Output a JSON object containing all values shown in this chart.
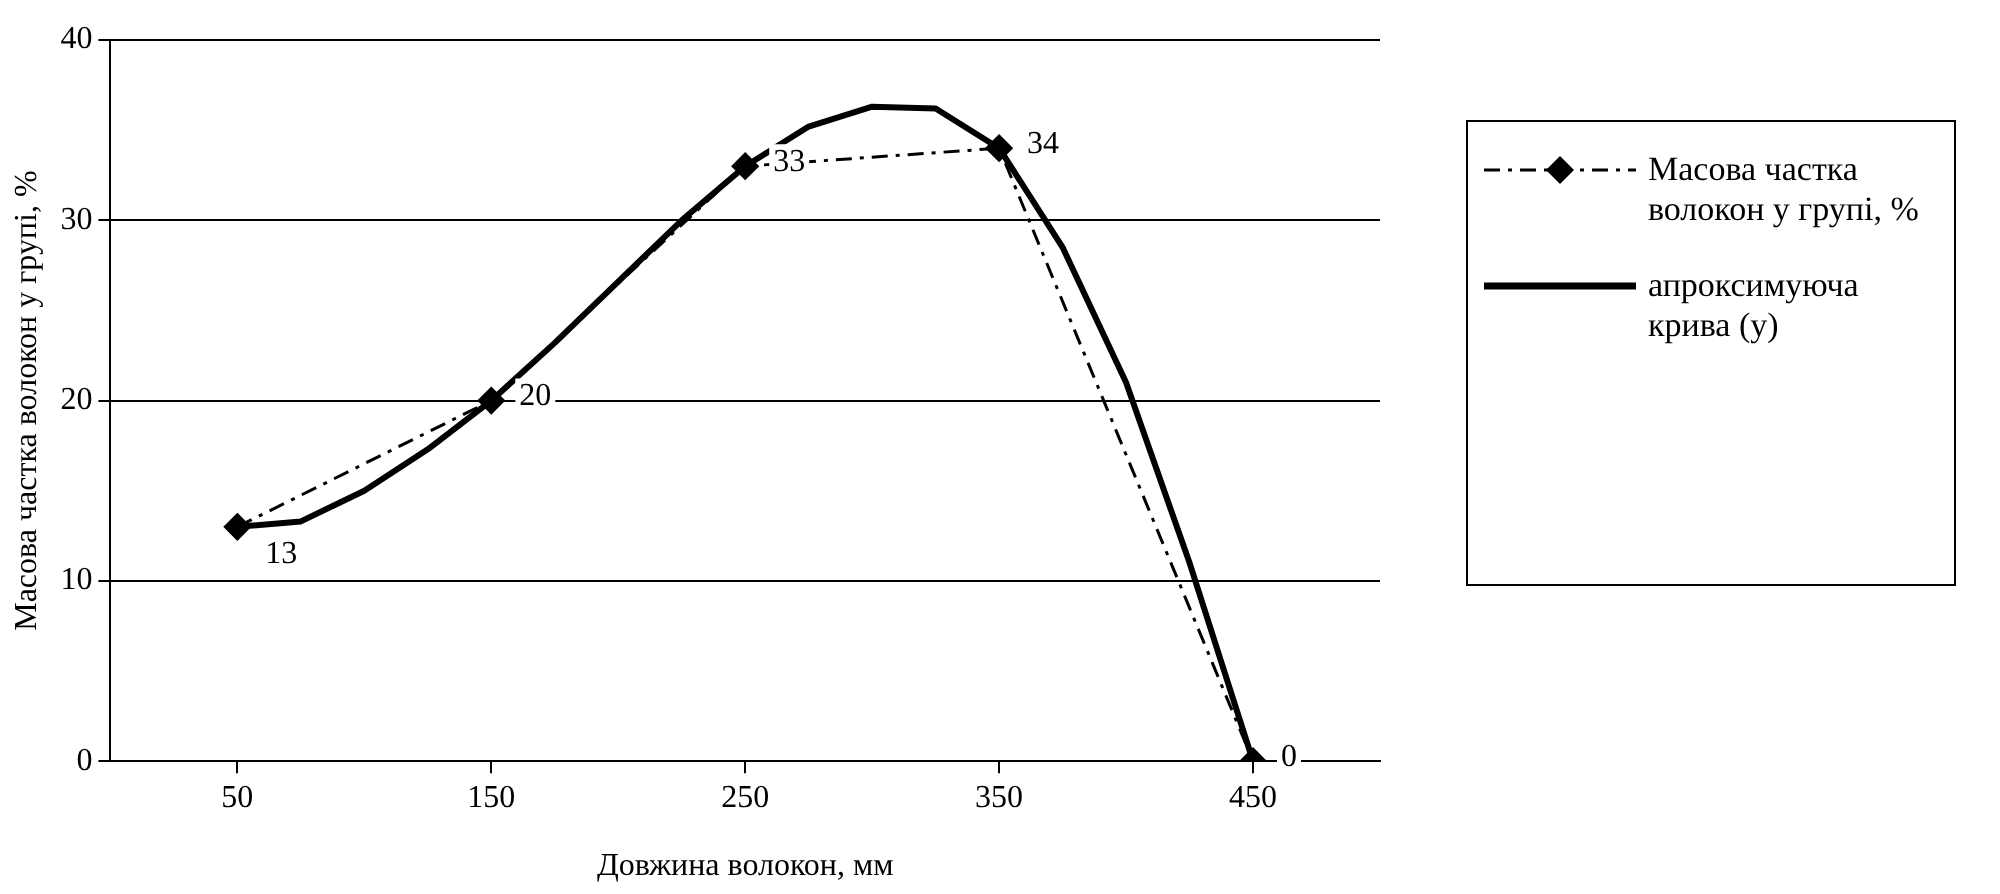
{
  "chart_data": {
    "type": "line",
    "xlabel": "Довжина волокон, мм",
    "ylabel": "Масова частка волокон у групі, %",
    "xlim": [
      0,
      500
    ],
    "xticks": [
      50,
      150,
      250,
      350,
      450
    ],
    "ylim": [
      0,
      40
    ],
    "yticks": [
      0,
      10,
      20,
      30,
      40
    ],
    "grid": "y",
    "legend": "right",
    "series": [
      {
        "name": "Масова частка волокон у групі, %",
        "color": "#000000",
        "marker": "diamond",
        "line_style": "dashed",
        "x": [
          50,
          150,
          250,
          350,
          450
        ],
        "values": [
          13,
          20,
          33,
          34,
          0
        ],
        "value_labels": [
          "13",
          "20",
          "33",
          "34",
          "0"
        ]
      },
      {
        "name": "апроксимуюча крива (y)",
        "color": "#000000",
        "marker": "none",
        "line_style": "solid",
        "x": [
          50,
          75,
          100,
          125,
          150,
          175,
          200,
          225,
          250,
          275,
          300,
          325,
          350,
          375,
          400,
          425,
          450
        ],
        "values": [
          13,
          13.3,
          15,
          17.3,
          20,
          23.2,
          26.6,
          30,
          33,
          35.2,
          36.3,
          36.2,
          34,
          28.5,
          21,
          11,
          0
        ]
      }
    ]
  }
}
